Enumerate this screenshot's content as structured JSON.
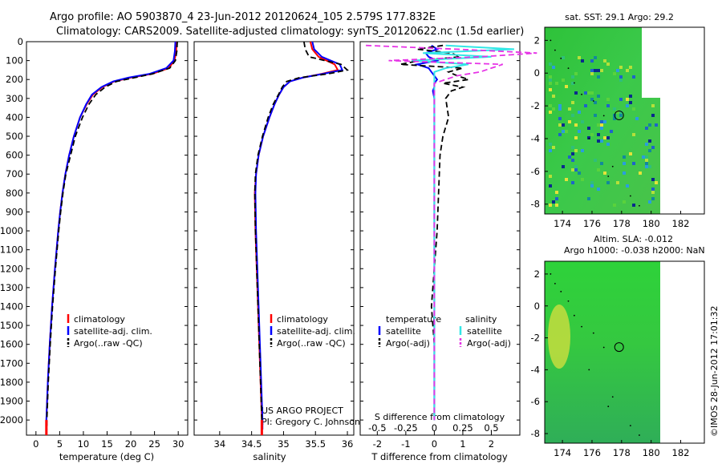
{
  "header": {
    "line1": "Argo profile: AO 5903870_4 23-Jun-2012 20120624_105 2.579S 177.832E",
    "line2": "Climatology: CARS2009. Satellite-adjusted climatology: synTS_20120622.nc (1.5d earlier)"
  },
  "colors": {
    "climatology": "#ff0000",
    "satellite": "#0000ff",
    "argo": "#000000",
    "sal_satellite": "#33e6e6",
    "sal_argo": "#e633e6"
  },
  "chart_data": [
    {
      "type": "line",
      "title": "",
      "xlabel": "temperature (deg C)",
      "ylabel": "",
      "xlim": [
        -2,
        32
      ],
      "ylim": [
        2080,
        0
      ],
      "reverse_y": true,
      "xticks": [
        "0",
        "5",
        "10",
        "15",
        "20",
        "25",
        "30"
      ],
      "yticks": [
        "0",
        "100",
        "200",
        "300",
        "400",
        "500",
        "600",
        "700",
        "800",
        "900",
        "1000",
        "1100",
        "1200",
        "1300",
        "1400",
        "1500",
        "1600",
        "1700",
        "1800",
        "1900",
        "2000"
      ],
      "legend": [
        "climatology",
        "satellite-adj. clim.",
        "Argo(..raw -QC)"
      ],
      "legend_position": "lower-center",
      "depth": [
        0,
        50,
        100,
        140,
        170,
        190,
        210,
        240,
        280,
        330,
        400,
        500,
        600,
        700,
        800,
        900,
        1000,
        1200,
        1400,
        1600,
        1800,
        2000,
        2050
      ],
      "series": [
        {
          "name": "climatology",
          "values": [
            29.6,
            29.6,
            29.2,
            28.0,
            24.5,
            20.0,
            16.5,
            14.0,
            12.0,
            10.7,
            9.3,
            8.0,
            7.0,
            6.2,
            5.6,
            5.1,
            4.7,
            4.0,
            3.4,
            2.9,
            2.5,
            2.2,
            2.2
          ]
        },
        {
          "name": "satellite-adj. clim.",
          "values": [
            29.4,
            29.3,
            29.0,
            27.5,
            24.0,
            19.5,
            16.3,
            13.8,
            11.8,
            10.6,
            9.3,
            8.0,
            7.0,
            6.2,
            5.6,
            5.1,
            4.7,
            4.0,
            3.4,
            2.9,
            2.5,
            2.2,
            2.2
          ]
        },
        {
          "name": "Argo(..raw -QC)",
          "values": [
            29.8,
            29.7,
            29.4,
            28.2,
            24.6,
            20.8,
            17.0,
            14.6,
            12.6,
            11.2,
            9.8,
            8.3,
            7.3,
            6.3,
            5.7,
            5.2,
            4.8,
            4.1,
            3.5,
            3.0,
            2.6,
            2.3,
            2.3
          ]
        }
      ]
    },
    {
      "type": "line",
      "title": "",
      "xlabel": "salinity",
      "ylabel": "",
      "xlim": [
        33.6,
        36.1
      ],
      "ylim": [
        2080,
        0
      ],
      "reverse_y": true,
      "xticks": [
        "34",
        "34.5",
        "35",
        "35.5",
        "36"
      ],
      "legend": [
        "climatology",
        "satellite-adj. clim.",
        "Argo(..raw -QC)"
      ],
      "legend_position": "lower-center",
      "annotation": [
        "US ARGO PROJECT",
        "PI: Gregory C. Johnson"
      ],
      "depth": [
        0,
        40,
        80,
        120,
        150,
        170,
        190,
        210,
        240,
        280,
        330,
        400,
        500,
        600,
        700,
        800,
        1000,
        1200,
        1400,
        1600,
        1800,
        2000,
        2050
      ],
      "series": [
        {
          "name": "climatology",
          "values": [
            35.42,
            35.45,
            35.55,
            35.8,
            35.85,
            35.6,
            35.3,
            35.1,
            35.0,
            34.93,
            34.86,
            34.78,
            34.68,
            34.61,
            34.57,
            34.55,
            34.56,
            34.58,
            34.6,
            34.62,
            34.64,
            34.66,
            34.66
          ]
        },
        {
          "name": "satellite-adj. clim.",
          "values": [
            35.45,
            35.48,
            35.6,
            35.88,
            35.92,
            35.62,
            35.3,
            35.1,
            35.0,
            34.93,
            34.86,
            34.78,
            34.68,
            34.61,
            34.57,
            34.56,
            34.57,
            34.59,
            34.61,
            34.63,
            34.65,
            34.67,
            34.67
          ]
        },
        {
          "name": "Argo(..raw -QC)",
          "values": [
            35.32,
            35.34,
            35.4,
            35.9,
            36.0,
            35.7,
            35.25,
            35.05,
            34.98,
            34.92,
            34.84,
            34.76,
            34.67,
            34.6,
            34.56,
            34.55,
            34.56,
            34.58,
            34.6,
            34.62,
            34.64,
            34.66,
            34.66
          ]
        }
      ]
    },
    {
      "type": "line",
      "title": "",
      "xlabel": "T difference from climatology",
      "xlabel_top": "S difference from climatology",
      "xlim": [
        -2.6,
        3.0
      ],
      "ylim": [
        2080,
        0
      ],
      "reverse_y": true,
      "xticks": [
        "-2",
        "-1",
        "0",
        "1",
        "2"
      ],
      "xticks_salinity": [
        "-0.5",
        "-0.25",
        "0",
        "0.25",
        "0.5"
      ],
      "legend_titles": [
        "temperature",
        "salinity"
      ],
      "legend": [
        "satellite",
        "Argo(-adj)",
        "satellite",
        "Argo(-adj)"
      ],
      "legend_position": "lower-center",
      "depth": [
        20,
        40,
        60,
        80,
        100,
        120,
        140,
        160,
        180,
        200,
        220,
        240,
        260,
        300,
        400,
        500,
        600,
        800,
        1000,
        1400,
        1600,
        2000
      ],
      "series": [
        {
          "name": "temperature satellite",
          "values": [
            -0.1,
            0.1,
            -0.3,
            -0.2,
            0.1,
            -0.6,
            -0.2,
            -0.1,
            0.0,
            0.1,
            0.0,
            0.0,
            -0.05,
            0.0,
            0.0,
            0.0,
            0.0,
            0.0,
            0.0,
            0.0,
            0.0,
            0.0
          ]
        },
        {
          "name": "temperature Argo(-adj)",
          "values": [
            0.3,
            -0.6,
            0.6,
            0.9,
            -0.5,
            -1.2,
            1.0,
            0.5,
            0.8,
            1.2,
            0.3,
            1.0,
            0.6,
            0.4,
            0.5,
            0.3,
            0.2,
            0.15,
            0.1,
            -0.1,
            0.0,
            0.0
          ]
        },
        {
          "name": "salinity satellite",
          "values": [
            0.1,
            0.7,
            -0.1,
            0.5,
            -0.2,
            0.3,
            0.1,
            0.0,
            0.0,
            0.0,
            0.0,
            0.0,
            0.0,
            0.0,
            0.0,
            0.0,
            0.0,
            0.0,
            0.0,
            0.0,
            0.0,
            0.0
          ]
        },
        {
          "name": "salinity Argo(-adj)",
          "values": [
            -0.6,
            0.2,
            0.9,
            0.4,
            -0.4,
            0.6,
            0.5,
            0.4,
            0.2,
            0.1,
            0.0,
            0.0,
            0.0,
            0.0,
            0.0,
            0.0,
            0.0,
            0.0,
            0.0,
            0.0,
            0.0,
            0.0
          ]
        }
      ]
    },
    {
      "type": "heatmap",
      "title": "sat. SST: 29.1 Argo: 29.2",
      "xlim": [
        172.8,
        183.6
      ],
      "ylim": [
        -8.6,
        2.8
      ],
      "xticks": [
        "174",
        "176",
        "178",
        "180",
        "182"
      ],
      "yticks": [
        "2",
        "0",
        "-2",
        "-4",
        "-6",
        "-8"
      ],
      "marker": {
        "lon": 177.832,
        "lat": -2.579
      }
    },
    {
      "type": "heatmap",
      "title": "Altim. SLA: -0.012",
      "subtitle": "Argo h1000: -0.038 h2000: NaN",
      "xlim": [
        172.8,
        183.6
      ],
      "ylim": [
        -8.6,
        2.8
      ],
      "xticks": [
        "174",
        "176",
        "178",
        "180",
        "182"
      ],
      "yticks": [
        "2",
        "0",
        "-2",
        "-4",
        "-6",
        "-8"
      ],
      "marker": {
        "lon": 177.832,
        "lat": -2.579
      }
    }
  ],
  "footer": {
    "stamp": "©IMOS 28-Jun-2012 17:01:32"
  }
}
